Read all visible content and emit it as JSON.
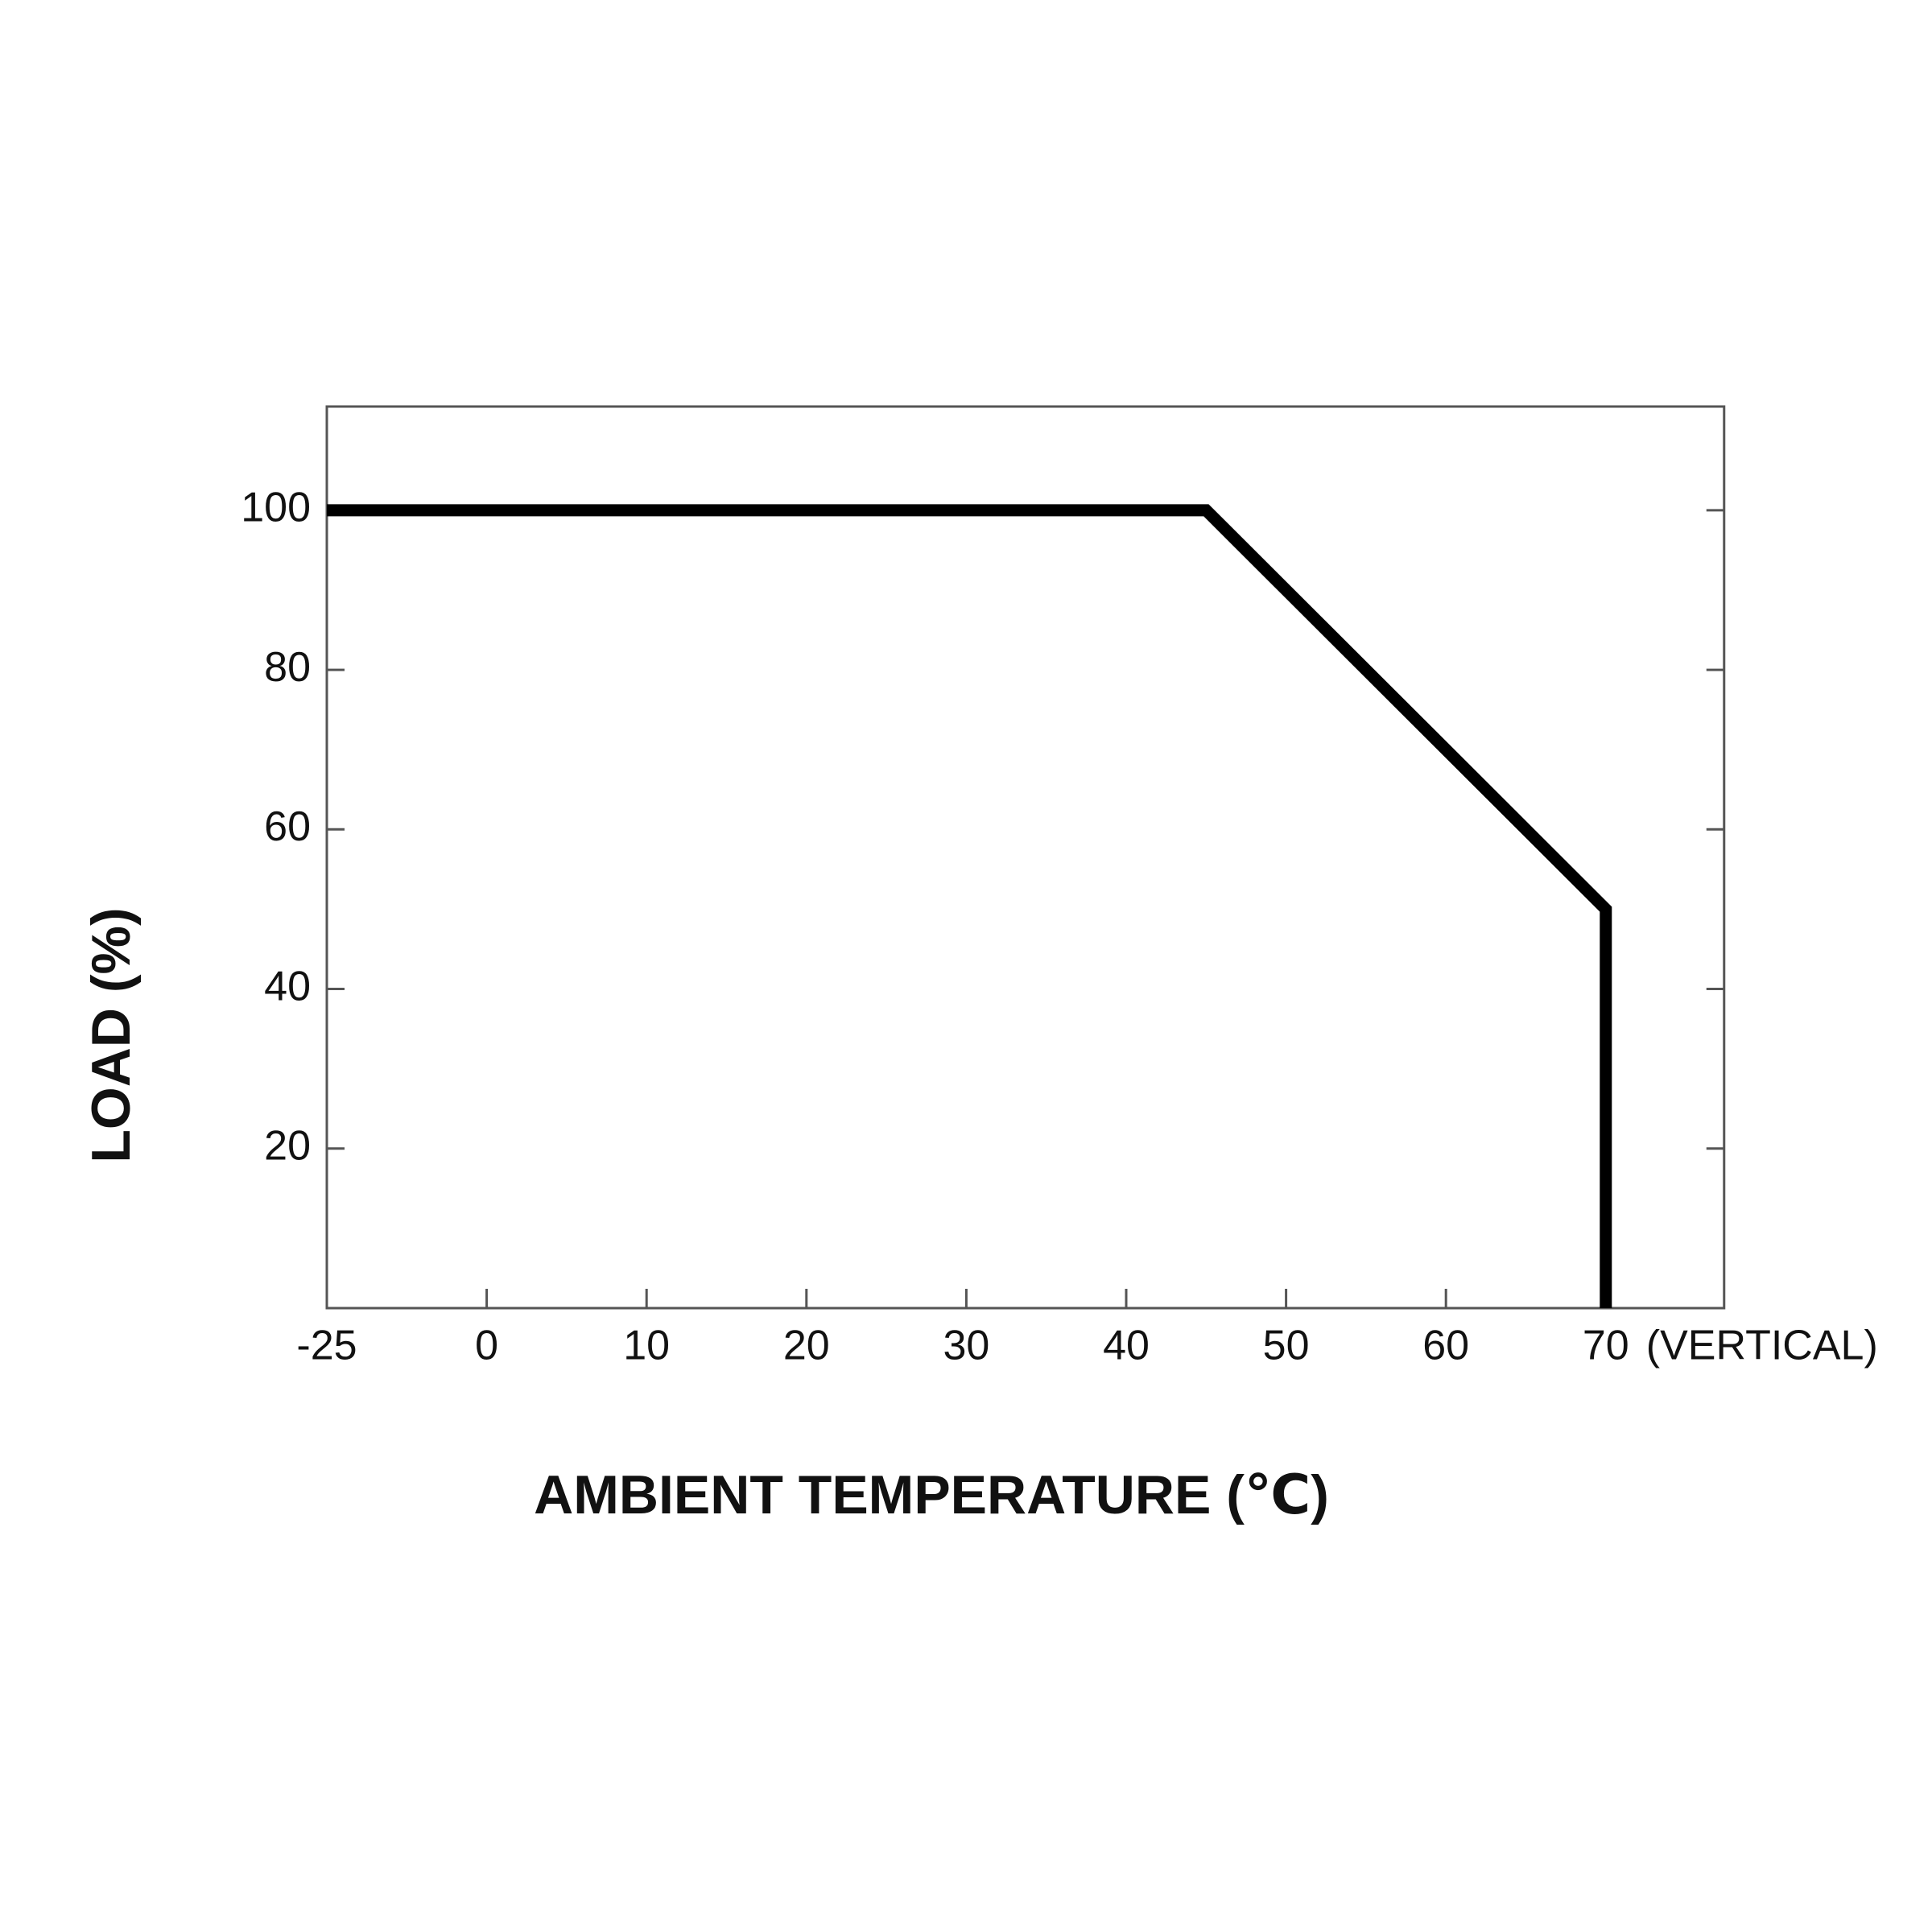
{
  "chart_data": {
    "type": "line",
    "x_label": "AMBIENT TEMPERATURE (℃)",
    "y_label": "LOAD (%)",
    "annotation": "(VERTICAL)",
    "series": [
      {
        "x": [
          -25,
          45,
          70,
          70
        ],
        "values": [
          100,
          100,
          50,
          0
        ],
        "color": "#000000"
      }
    ],
    "xlim": [
      -25,
      77.4
    ],
    "xticks": [
      -25,
      0,
      10,
      20,
      30,
      40,
      50,
      60,
      70
    ],
    "ylim": [
      0,
      113
    ],
    "yticks": [
      20,
      40,
      60,
      80,
      100
    ],
    "grid": false
  }
}
